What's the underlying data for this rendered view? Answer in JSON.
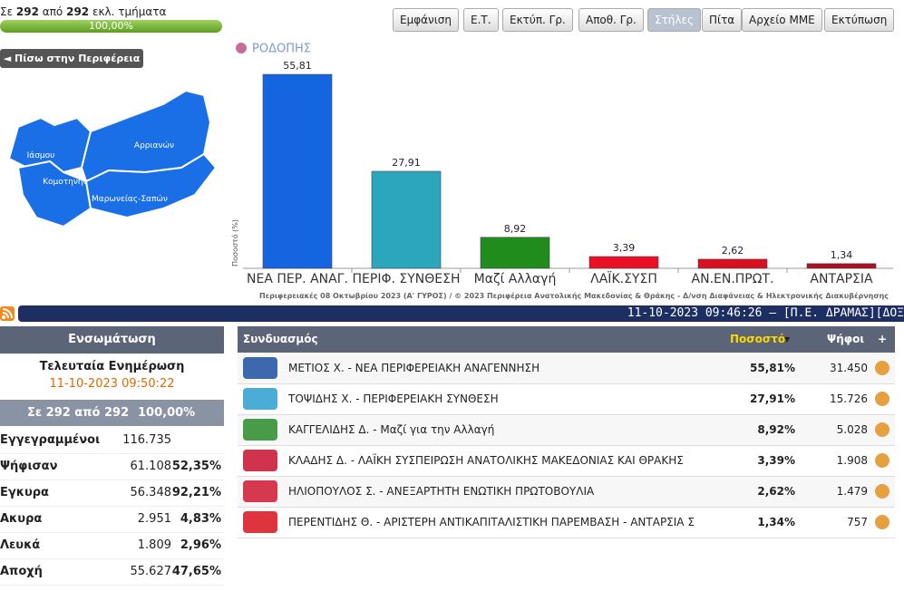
{
  "progress": {
    "prefix": "Σε",
    "counted": "292",
    "middle": "από",
    "total": "292",
    "suffix": "εκλ. τμήματα",
    "percent": "100,00%"
  },
  "toolbar": {
    "buttons": [
      "Εμφάνιση",
      "Ε.Τ.",
      "Εκτύπ. Γρ.",
      "Αποθ. Γρ.",
      "Στήλες",
      "Πίτα",
      "Αρχείο ΜΜΕ",
      "Εκτύπωση"
    ],
    "active": "Στήλες"
  },
  "back_button": "◄ Πίσω στην Περιφέρεια",
  "map": {
    "labels": [
      "Ιάσμου",
      "Κομοτηνής",
      "Αρριανών",
      "Μαρωνείας-Σαπών"
    ]
  },
  "chart": {
    "type": "bar",
    "title": "ΡΟΔΟΠΗΣ",
    "y_label": "Ποσοστό (%)",
    "categories": [
      "ΝΕΑ ΠΕΡ. ΑΝΑΓ.",
      "ΠΕΡΙΦ. ΣΥΝΘΕΣΗ",
      "Μαζί Αλλαγή",
      "ΛΑΪΚ.ΣΥΣΠ",
      "ΑΝ.ΕΝ.ΠΡΩΤ.",
      "ΑΝΤΑΡΣΙΑ"
    ],
    "values": [
      55.81,
      27.91,
      8.92,
      3.39,
      2.62,
      1.34
    ],
    "value_labels": [
      "55,81",
      "27,91",
      "8,92",
      "3,39",
      "2,62",
      "1,34"
    ],
    "colors": [
      "#1565e0",
      "#2ba6ba",
      "#1f8c1c",
      "#ea1026",
      "#d8101e",
      "#b0101c"
    ],
    "ylim": [
      0,
      60
    ],
    "footer": "Περιφερειακές 08 Οκτωβρίου 2023 (Α' ΓΥΡΟΣ) / © 2023 Περιφέρεια Ανατολικής Μακεδονίας & Θράκης - Δ/νση Διαφάνειας & Ηλεκτρονικής Διακυβέρνησης"
  },
  "ticker": "11-10-2023 09:46:26 – [Π.Ε. ΔΡΑΜΑΣ][ΔΟΞ",
  "summary": {
    "title": "Ενσωμάτωση",
    "last_update_label": "Τελευταία Ενημέρωση",
    "last_update": "11-10-2023 09:50:22",
    "sections": [
      "Σε 292 από",
      "292",
      "100,00%"
    ],
    "rows": [
      [
        "Εγγεγραμμένοι",
        "116.735",
        ""
      ],
      [
        "Ψήφισαν",
        "61.108",
        "52,35%"
      ],
      [
        "Εγκυρα",
        "56.348",
        "92,21%"
      ],
      [
        "Ακυρα",
        "2.951",
        "4,83%"
      ],
      [
        "Λευκά",
        "1.809",
        "2,96%"
      ],
      [
        "Αποχή",
        "55.627",
        "47,65%"
      ]
    ]
  },
  "table": {
    "headers": [
      "Συνδυασμός",
      "Ποσοστό",
      "Ψήφοι",
      "+"
    ],
    "rows": [
      [
        "ΜΕΤΙΟΣ Χ. - ΝΕΑ ΠΕΡΙΦΕΡΕΙΑΚΗ ΑΝΑΓΕΝΝΗΣΗ",
        "55,81%",
        "31.450"
      ],
      [
        "ΤΟΨΙΔΗΣ Χ. - ΠΕΡΙΦΕΡΕΙΑΚΗ ΣΥΝΘΕΣΗ",
        "27,91%",
        "15.726"
      ],
      [
        "ΚΑΓΓΕΛΙΔΗΣ Δ. - Μαζί για την Αλλαγή",
        "8,92%",
        "5.028"
      ],
      [
        "ΚΛΑΔΗΣ Δ. - ΛΑΪΚΗ ΣΥΣΠΕΙΡΩΣΗ ΑΝΑΤΟΛΙΚΗΣ ΜΑΚΕΔΟΝΙΑΣ ΚΑΙ ΘΡΑΚΗΣ",
        "3,39%",
        "1.908"
      ],
      [
        "ΗΛΙΟΠΟΥΛΟΣ Σ. - ΑΝΕΞΑΡΤΗΤΗ ΕΝΩΤΙΚΗ ΠΡΩΤΟΒΟΥΛΙΑ",
        "2,62%",
        "1.479"
      ],
      [
        "ΠΕΡΕΝΤΙΔΗΣ Θ. - ΑΡΙΣΤΕΡΗ ΑΝΤΙΚΑΠΙΤΑΛΙΣΤΙΚΗ ΠΑΡΕΜΒΑΣΗ - ΑΝΤΑΡΣΙΑ Σ",
        "1,34%",
        "757"
      ]
    ]
  }
}
